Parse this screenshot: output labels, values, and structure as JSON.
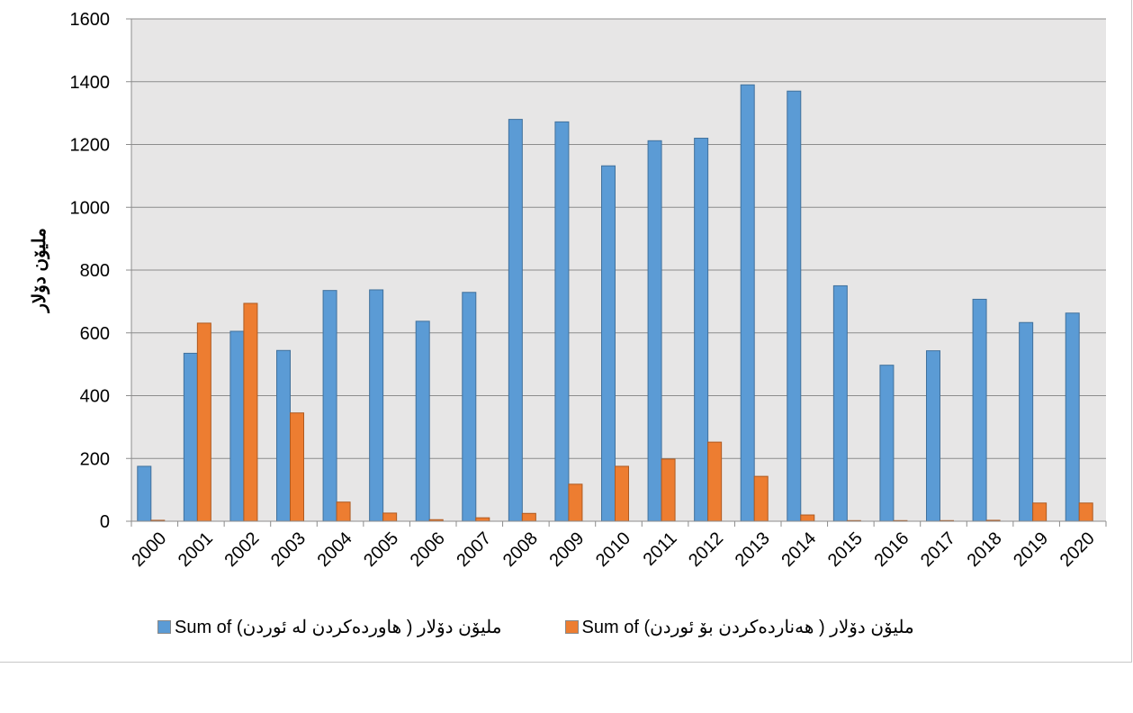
{
  "chart_data": {
    "type": "bar",
    "title": "",
    "xlabel": "",
    "ylabel": "مليۆن دۆلار",
    "ylim": [
      0,
      1600
    ],
    "yticks": [
      "0",
      "200",
      "400",
      "600",
      "800",
      "1000",
      "1200",
      "1400",
      "1600"
    ],
    "grid": true,
    "legend_position": "bottom",
    "categories": [
      "2000",
      "2001",
      "2002",
      "2003",
      "2004",
      "2005",
      "2006",
      "2007",
      "2008",
      "2009",
      "2010",
      "2011",
      "2012",
      "2013",
      "2014",
      "2015",
      "2016",
      "2017",
      "2018",
      "2019",
      "2020"
    ],
    "series": [
      {
        "name": "Sum of مليۆن دۆلار ( هاوردەکردن لە ئوردن)",
        "color": "#5B9BD5",
        "values": [
          175,
          535,
          605,
          544,
          735,
          737,
          637,
          729,
          1280,
          1272,
          1132,
          1212,
          1220,
          1390,
          1370,
          750,
          497,
          543,
          707,
          633,
          663
        ]
      },
      {
        "name": "Sum of مليۆن دۆلار ( هەناردەکردن بۆ ئوردن)",
        "color": "#ED7D31",
        "values": [
          3,
          631,
          694,
          345,
          61,
          26,
          5,
          11,
          25,
          118,
          175,
          198,
          252,
          143,
          20,
          2,
          2,
          2,
          3,
          58,
          58
        ]
      }
    ]
  }
}
